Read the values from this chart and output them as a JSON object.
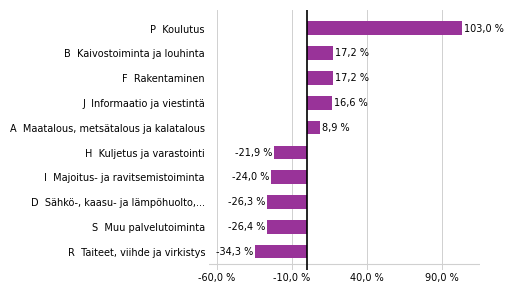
{
  "categories": [
    "R  Taiteet, viihde ja virkistys",
    "S  Muu palvelutoiminta",
    "D  Sähkö-, kaasu- ja lämpöhuolto,...",
    "I  Majoitus- ja ravitsemistoiminta",
    "H  Kuljetus ja varastointi",
    "A  Maatalous, metsätalous ja kalatalous",
    "J  Informaatio ja viestintä",
    "F  Rakentaminen",
    "B  Kaivostoiminta ja louhinta",
    "P  Koulutus"
  ],
  "values": [
    -34.3,
    -26.4,
    -26.3,
    -24.0,
    -21.9,
    8.9,
    16.6,
    17.2,
    17.2,
    103.0
  ],
  "bar_color": "#993399",
  "background_color": "#ffffff",
  "xlim": [
    -65,
    115
  ],
  "xticks": [
    -60.0,
    -10.0,
    40.0,
    90.0
  ],
  "value_labels": [
    "-34,3 %",
    "-26,4 %",
    "-26,3 %",
    "-24,0 %",
    "-21,9 %",
    "8,9 %",
    "16,6 %",
    "17,2 %",
    "17,2 %",
    "103,0 %"
  ],
  "xtick_labels": [
    "-60,0 %",
    "-10,0 %",
    "40,0 %",
    "90,0 %"
  ],
  "grid_color": "#d0d0d0",
  "label_fontsize": 7.0,
  "bar_height": 0.55
}
